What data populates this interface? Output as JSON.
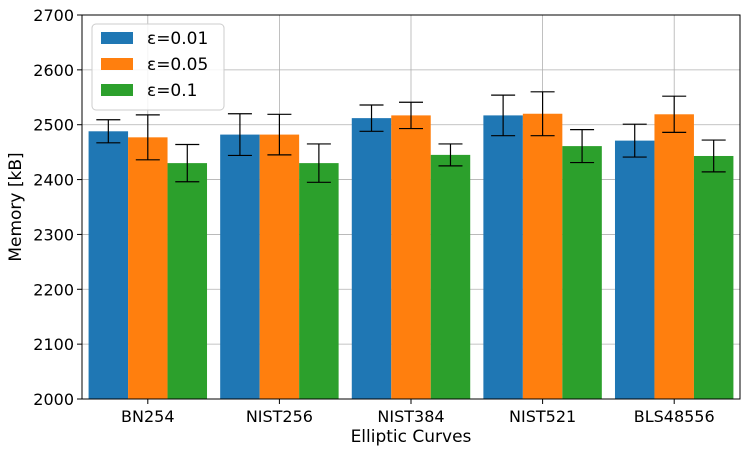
{
  "chart_data": {
    "type": "bar",
    "xlabel": "Elliptic Curves",
    "ylabel": "Memory [kB]",
    "ylim": [
      2000,
      2700
    ],
    "yticks": [
      2000,
      2100,
      2200,
      2300,
      2400,
      2500,
      2600,
      2700
    ],
    "grid": true,
    "legend_position": "top-left",
    "categories": [
      "BN254",
      "NIST256",
      "NIST384",
      "NIST521",
      "BLS48556"
    ],
    "series": [
      {
        "name": "ε=0.01",
        "color": "#1f77b4",
        "values": [
          2488,
          2482,
          2512,
          2517,
          2471
        ],
        "errors": [
          21,
          38,
          24,
          37,
          30
        ]
      },
      {
        "name": "ε=0.05",
        "color": "#ff7f0e",
        "values": [
          2477,
          2482,
          2517,
          2520,
          2519
        ],
        "errors": [
          41,
          37,
          24,
          40,
          33
        ]
      },
      {
        "name": "ε=0.1",
        "color": "#2ca02c",
        "values": [
          2430,
          2430,
          2445,
          2461,
          2443
        ],
        "errors": [
          34,
          35,
          20,
          30,
          29
        ]
      }
    ]
  }
}
